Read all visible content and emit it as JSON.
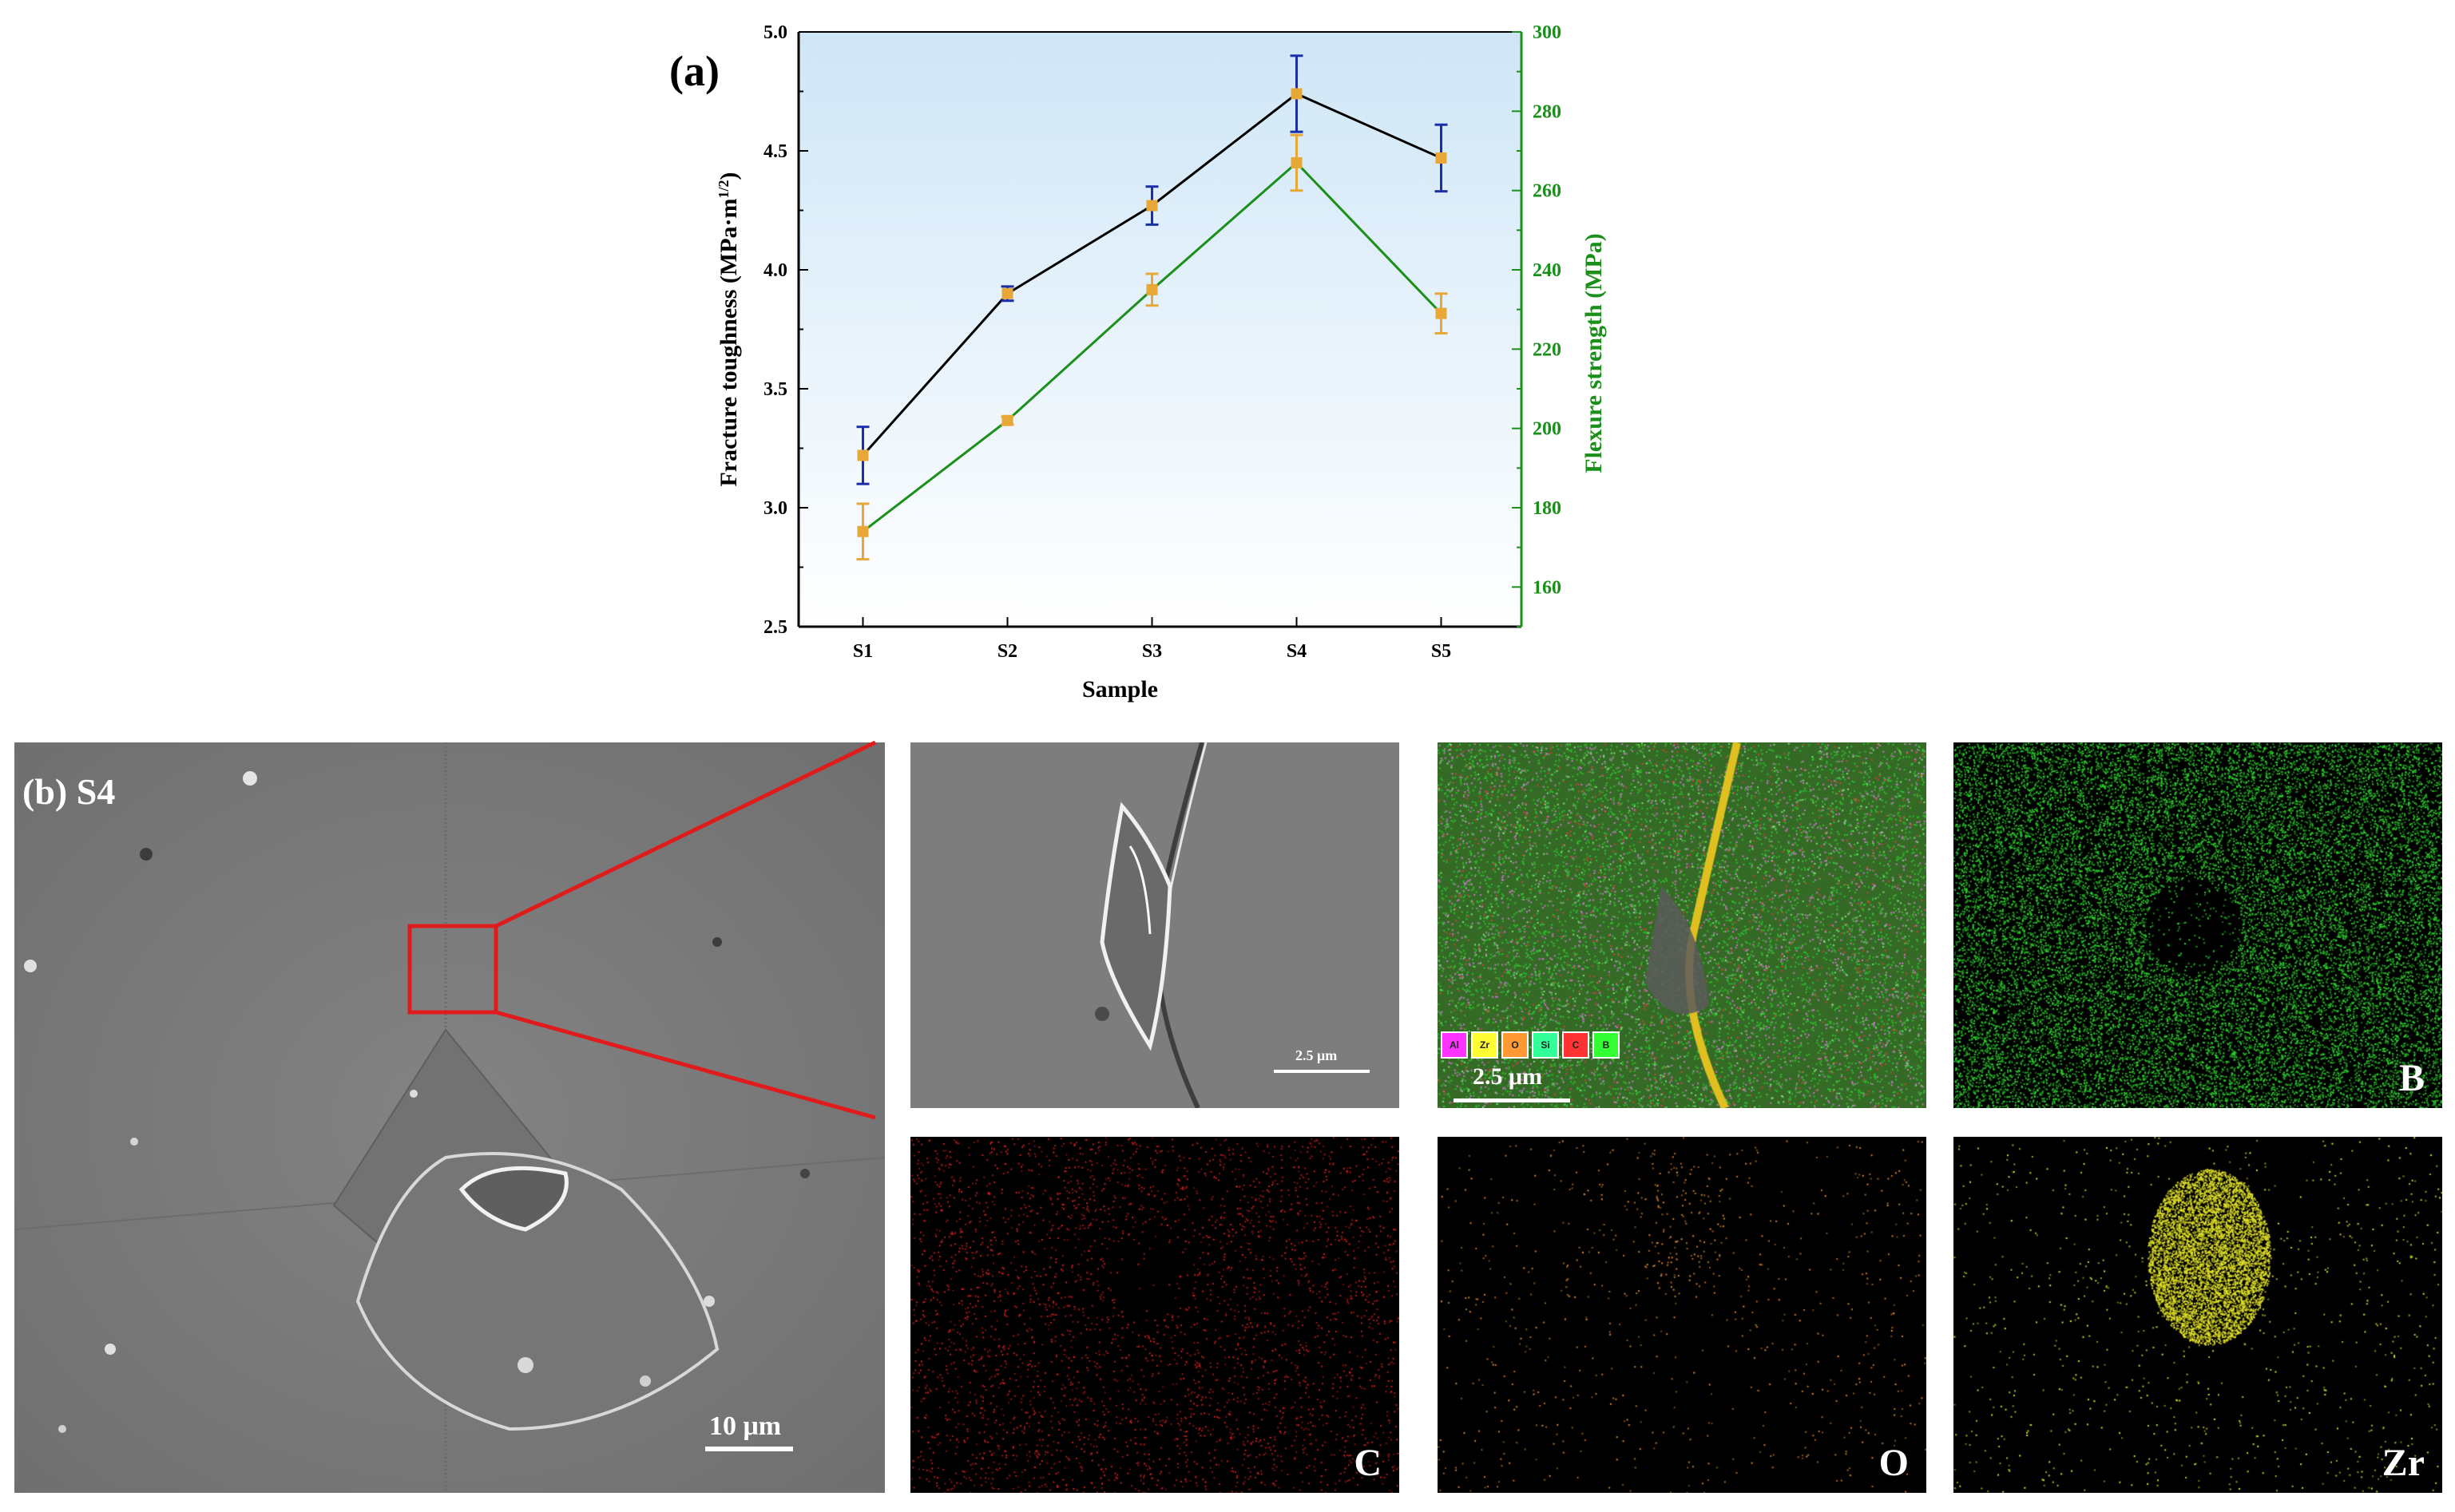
{
  "panel_a": {
    "label": "(a)"
  },
  "chart_data": {
    "type": "line",
    "categories": [
      "S1",
      "S2",
      "S3",
      "S4",
      "S5"
    ],
    "xlabel": "Sample",
    "y_left": {
      "label": "Fracture toughness (MPa·m",
      "label_sup": "1/2",
      "label_end": ")",
      "ylim": [
        2.5,
        5.0
      ],
      "ticks": [
        "2.5",
        "3.0",
        "3.5",
        "4.0",
        "4.5",
        "5.0"
      ]
    },
    "y_right": {
      "label": "Flexure strength (MPa)",
      "ylim": [
        150,
        300
      ],
      "ticks": [
        "160",
        "180",
        "200",
        "220",
        "240",
        "260",
        "280",
        "300"
      ]
    },
    "series": [
      {
        "axis": "left",
        "color": "#000000",
        "marker_color": "#e8a838",
        "error_color": "#1a2fa8",
        "values": [
          3.22,
          3.9,
          4.27,
          4.74,
          4.47
        ],
        "errors": [
          0.12,
          0.03,
          0.08,
          0.16,
          0.14
        ]
      },
      {
        "axis": "right",
        "color": "#1a8f1a",
        "marker_color": "#e8a838",
        "error_color": "#e8a838",
        "values": [
          174,
          202,
          235,
          267,
          229
        ],
        "errors": [
          7,
          1,
          4,
          7,
          5
        ]
      }
    ],
    "grid": false,
    "background_gradient": [
      "#cfe6f7",
      "#ffffff"
    ]
  },
  "panel_b": {
    "label": "(b)",
    "sample": "S4",
    "scale_main": "10 μm",
    "scale_zoom": "2.5 μm",
    "scale_overlay": "2.5 μm",
    "legend_elements": [
      "Al",
      "Zr",
      "O",
      "Si",
      "C",
      "B"
    ],
    "legend_colors": [
      "#ff33ff",
      "#ffff33",
      "#ff9933",
      "#33ff99",
      "#ff3333",
      "#33ff33"
    ],
    "maps": [
      {
        "element": "B",
        "color": "#2fd62f"
      },
      {
        "element": "C",
        "color": "#d61f1f"
      },
      {
        "element": "O",
        "color": "#e08a2a"
      },
      {
        "element": "Zr",
        "color": "#e3e32a"
      }
    ],
    "highlight_color": "#e01b1b"
  }
}
